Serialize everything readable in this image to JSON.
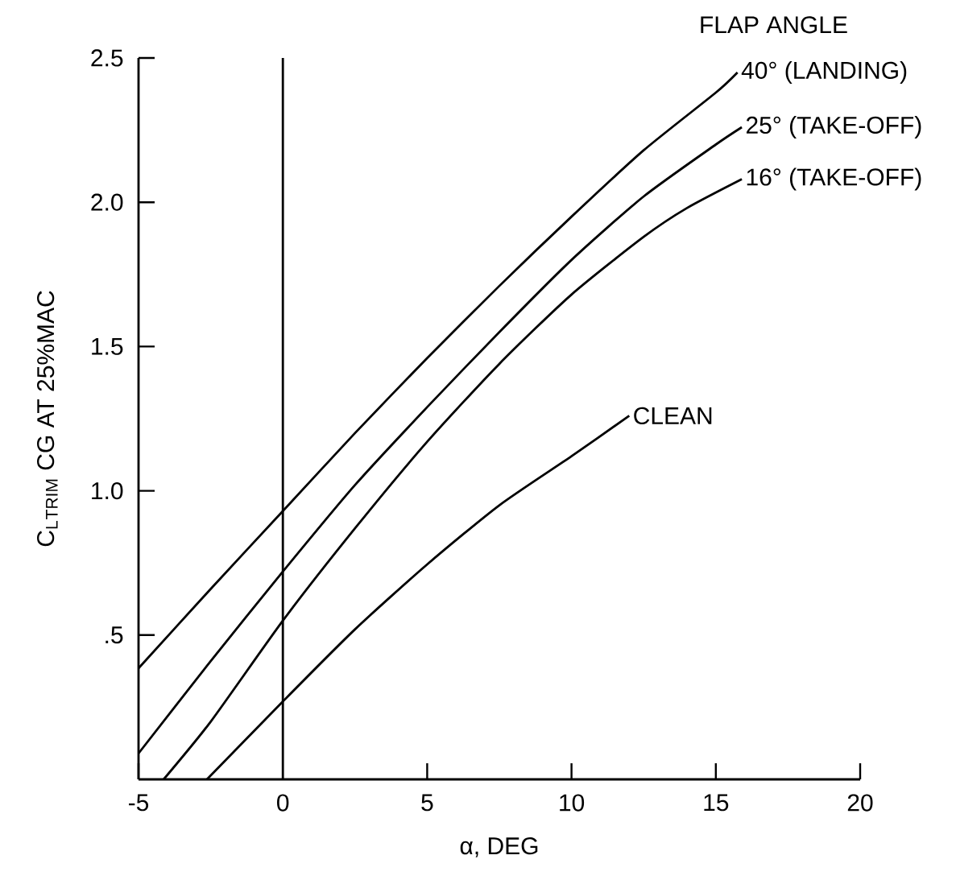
{
  "chart_data": {
    "type": "line",
    "xlabel": "α, DEG",
    "ylabel": "C$_{L}$$_{TRIM}$ CG AT 25%MAC",
    "annotations": [
      "FLAP ANGLE"
    ],
    "xlim": [
      -5,
      20
    ],
    "xticks": [
      -5,
      0,
      5,
      10,
      15,
      20
    ],
    "ylim": [
      0,
      2.5
    ],
    "yticks": [
      {
        "value": 0.5,
        "label": ".5"
      },
      {
        "value": 1.0,
        "label": "1.0"
      },
      {
        "value": 1.5,
        "label": "1.5"
      },
      {
        "value": 2.0,
        "label": "2.0"
      },
      {
        "value": 2.5,
        "label": "2.5"
      }
    ],
    "ref_lines": [
      {
        "axis": "x",
        "value": 0,
        "color": "#000000"
      }
    ],
    "grid": false,
    "series": [
      {
        "name": "40° (LANDING)",
        "color": "#000000",
        "x": [
          -5,
          -2.5,
          0,
          2.5,
          5,
          7.5,
          10,
          12.5,
          15,
          15.75
        ],
        "values": [
          0.385,
          0.66,
          0.93,
          1.2,
          1.46,
          1.71,
          1.95,
          2.18,
          2.38,
          2.45
        ]
      },
      {
        "name": "25° (TAKE-OFF)",
        "color": "#000000",
        "x": [
          -5,
          -2.5,
          0,
          2.5,
          5,
          7.5,
          10,
          12.5,
          15,
          15.9
        ],
        "values": [
          0.09,
          0.41,
          0.72,
          1.02,
          1.29,
          1.55,
          1.8,
          2.02,
          2.2,
          2.26
        ]
      },
      {
        "name": "16° (TAKE-OFF)",
        "color": "#000000",
        "x": [
          -4.13,
          -2.5,
          0,
          2.5,
          5,
          7.5,
          10,
          12.5,
          14,
          15.9
        ],
        "values": [
          0,
          0.2,
          0.55,
          0.87,
          1.17,
          1.44,
          1.68,
          1.88,
          1.98,
          2.08
        ]
      },
      {
        "name": "CLEAN",
        "color": "#000000",
        "x": [
          -2.63,
          0,
          2.5,
          5,
          7.5,
          10,
          12
        ],
        "values": [
          0,
          0.27,
          0.52,
          0.745,
          0.95,
          1.12,
          1.26
        ]
      }
    ]
  }
}
